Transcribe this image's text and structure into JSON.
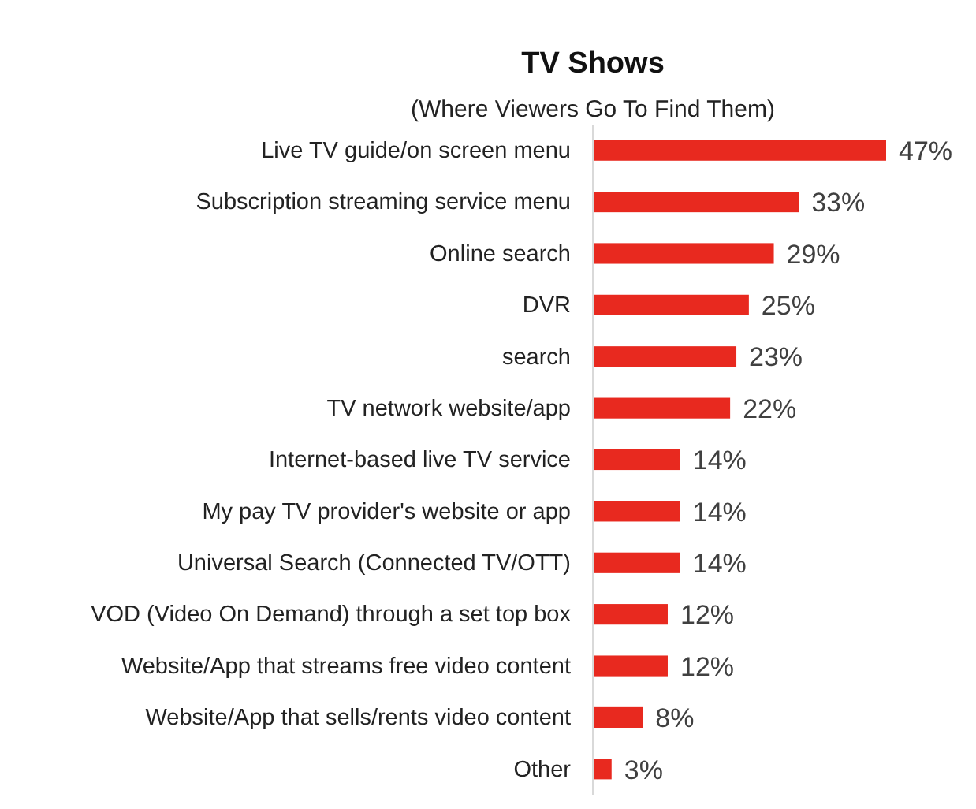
{
  "chart_data": {
    "type": "bar",
    "orientation": "horizontal",
    "title": "TV Shows",
    "subtitle": "(Where Viewers Go To Find Them)",
    "categories": [
      "Live TV guide/on screen menu",
      "Subscription streaming service menu",
      "Online search",
      "DVR",
      "search",
      "TV network website/app",
      "Internet-based live TV service",
      "My pay TV provider's website or app",
      "Universal Search (Connected TV/OTT)",
      "VOD (Video On Demand) through a set top box",
      "Website/App that streams free video content",
      "Website/App that sells/rents video content",
      "Other"
    ],
    "values": [
      47,
      33,
      29,
      25,
      23,
      22,
      14,
      14,
      14,
      12,
      12,
      8,
      3
    ],
    "value_labels": [
      "47%",
      "33%",
      "29%",
      "25%",
      "23%",
      "22%",
      "14%",
      "14%",
      "14%",
      "12%",
      "12%",
      "8%",
      "3%"
    ],
    "color": "#e8291f"
  }
}
